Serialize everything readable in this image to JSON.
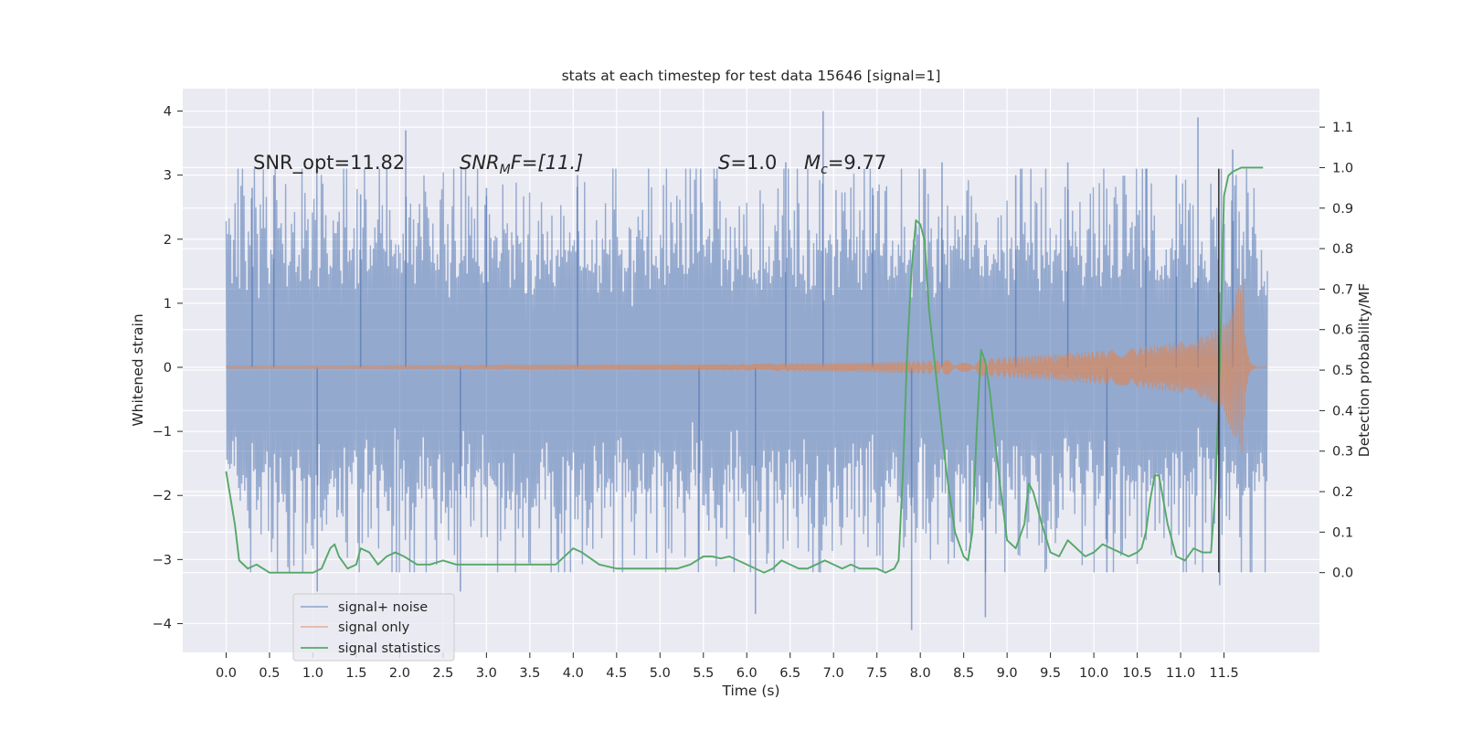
{
  "chart_data": {
    "type": "line",
    "title": "stats at each timestep for test data 15646 [signal=1]",
    "xlabel": "Time (s)",
    "ylabel": "Whitened strain",
    "ylabel_right": "Detection probability/MF",
    "xlim": [
      -0.5,
      12.6
    ],
    "ylim": [
      -4.45,
      4.35
    ],
    "ylim_right": [
      -0.197,
      1.195
    ],
    "x_ticks": [
      "0.0",
      "0.5",
      "1.0",
      "1.5",
      "2.0",
      "2.5",
      "3.0",
      "3.5",
      "4.0",
      "4.5",
      "5.0",
      "5.5",
      "6.0",
      "6.5",
      "7.0",
      "7.5",
      "8.0",
      "8.5",
      "9.0",
      "9.5",
      "10.0",
      "10.5",
      "11.0",
      "11.5"
    ],
    "y_ticks": [
      "−4",
      "−3",
      "−2",
      "−1",
      "0",
      "1",
      "2",
      "3",
      "4"
    ],
    "y_ticks_right": [
      "0.0",
      "0.1",
      "0.2",
      "0.3",
      "0.4",
      "0.5",
      "0.6",
      "0.7",
      "0.8",
      "0.9",
      "1.0",
      "1.1"
    ],
    "grid": true,
    "legend_position": "lower-left",
    "annotations": {
      "snr_opt": "SNR_opt=11.82",
      "snr_mf_main": "SNR",
      "snr_mf_sub": "M",
      "snr_mf_rest": "F=[11.]",
      "s_italic": "S",
      "s_value": "=1.0",
      "mc_main": "M",
      "mc_sub": "c",
      "mc_value": "=9.77"
    },
    "marker_time": 11.44,
    "series": [
      {
        "name": "signal+ noise",
        "color": "#4c72b0",
        "axis": "left",
        "t_start": 0.0,
        "t_end": 12.0,
        "typical_abs_max": 2.3,
        "peak_times": [
          0.3,
          0.55,
          1.05,
          1.55,
          2.07,
          2.7,
          3.0,
          4.05,
          5.45,
          6.1,
          6.45,
          6.88,
          7.45,
          7.9,
          8.25,
          8.75,
          9.1,
          9.7,
          10.15,
          10.6,
          10.95,
          11.2,
          11.45,
          11.6
        ],
        "peak_values": [
          2.8,
          3.0,
          -3.5,
          2.7,
          3.7,
          -3.5,
          2.8,
          3.0,
          -3.0,
          -3.85,
          3.2,
          4.0,
          2.8,
          -4.1,
          3.2,
          -3.9,
          3.0,
          3.2,
          -3.2,
          3.1,
          3.0,
          3.9,
          -3.4,
          3.4
        ]
      },
      {
        "name": "signal only",
        "color": "#dd8452",
        "axis": "left",
        "chirp_end": 11.72,
        "envelope_t": [
          0.0,
          3.0,
          6.0,
          7.5,
          8.5,
          9.5,
          10.5,
          11.0,
          11.3,
          11.5,
          11.65,
          11.72
        ],
        "envelope_a": [
          0.02,
          0.03,
          0.05,
          0.08,
          0.12,
          0.2,
          0.3,
          0.4,
          0.5,
          0.7,
          1.2,
          1.4
        ]
      },
      {
        "name": "signal statistics",
        "color": "#55a868",
        "axis": "right",
        "x": [
          0.0,
          0.1,
          0.15,
          0.25,
          0.35,
          0.5,
          0.6,
          0.8,
          1.0,
          1.1,
          1.2,
          1.25,
          1.3,
          1.4,
          1.5,
          1.55,
          1.65,
          1.75,
          1.85,
          1.95,
          2.05,
          2.2,
          2.35,
          2.5,
          2.65,
          2.8,
          3.0,
          3.2,
          3.4,
          3.6,
          3.8,
          3.9,
          4.0,
          4.1,
          4.3,
          4.5,
          4.8,
          5.0,
          5.2,
          5.35,
          5.5,
          5.6,
          5.7,
          5.8,
          6.0,
          6.2,
          6.3,
          6.4,
          6.5,
          6.6,
          6.7,
          6.9,
          7.0,
          7.1,
          7.2,
          7.3,
          7.5,
          7.6,
          7.7,
          7.75,
          7.8,
          7.85,
          7.9,
          7.95,
          8.0,
          8.05,
          8.1,
          8.2,
          8.3,
          8.4,
          8.5,
          8.55,
          8.6,
          8.65,
          8.7,
          8.75,
          8.8,
          8.9,
          9.0,
          9.1,
          9.2,
          9.25,
          9.3,
          9.4,
          9.5,
          9.6,
          9.7,
          9.75,
          9.8,
          9.9,
          10.0,
          10.1,
          10.2,
          10.3,
          10.4,
          10.5,
          10.55,
          10.6,
          10.65,
          10.7,
          10.75,
          10.85,
          10.95,
          11.05,
          11.15,
          11.25,
          11.35,
          11.4,
          11.45,
          11.5,
          11.55,
          11.6,
          11.7,
          11.8,
          11.9,
          11.95
        ],
        "y": [
          0.25,
          0.12,
          0.03,
          0.01,
          0.02,
          0.0,
          0.0,
          0.0,
          0.0,
          0.01,
          0.06,
          0.07,
          0.04,
          0.01,
          0.02,
          0.06,
          0.05,
          0.02,
          0.04,
          0.05,
          0.04,
          0.02,
          0.02,
          0.03,
          0.02,
          0.02,
          0.02,
          0.02,
          0.02,
          0.02,
          0.02,
          0.04,
          0.06,
          0.05,
          0.02,
          0.01,
          0.01,
          0.01,
          0.01,
          0.02,
          0.04,
          0.04,
          0.035,
          0.04,
          0.02,
          0.0,
          0.01,
          0.03,
          0.02,
          0.01,
          0.01,
          0.03,
          0.02,
          0.01,
          0.02,
          0.01,
          0.01,
          0.0,
          0.01,
          0.03,
          0.25,
          0.55,
          0.75,
          0.87,
          0.86,
          0.82,
          0.65,
          0.45,
          0.25,
          0.1,
          0.04,
          0.03,
          0.1,
          0.35,
          0.55,
          0.52,
          0.45,
          0.25,
          0.08,
          0.06,
          0.12,
          0.22,
          0.2,
          0.12,
          0.05,
          0.04,
          0.08,
          0.07,
          0.06,
          0.04,
          0.05,
          0.07,
          0.06,
          0.05,
          0.04,
          0.05,
          0.06,
          0.1,
          0.18,
          0.24,
          0.24,
          0.12,
          0.04,
          0.03,
          0.06,
          0.05,
          0.05,
          0.2,
          0.5,
          0.93,
          0.98,
          0.99,
          1.0,
          1.0,
          1.0,
          1.0
        ]
      }
    ]
  }
}
